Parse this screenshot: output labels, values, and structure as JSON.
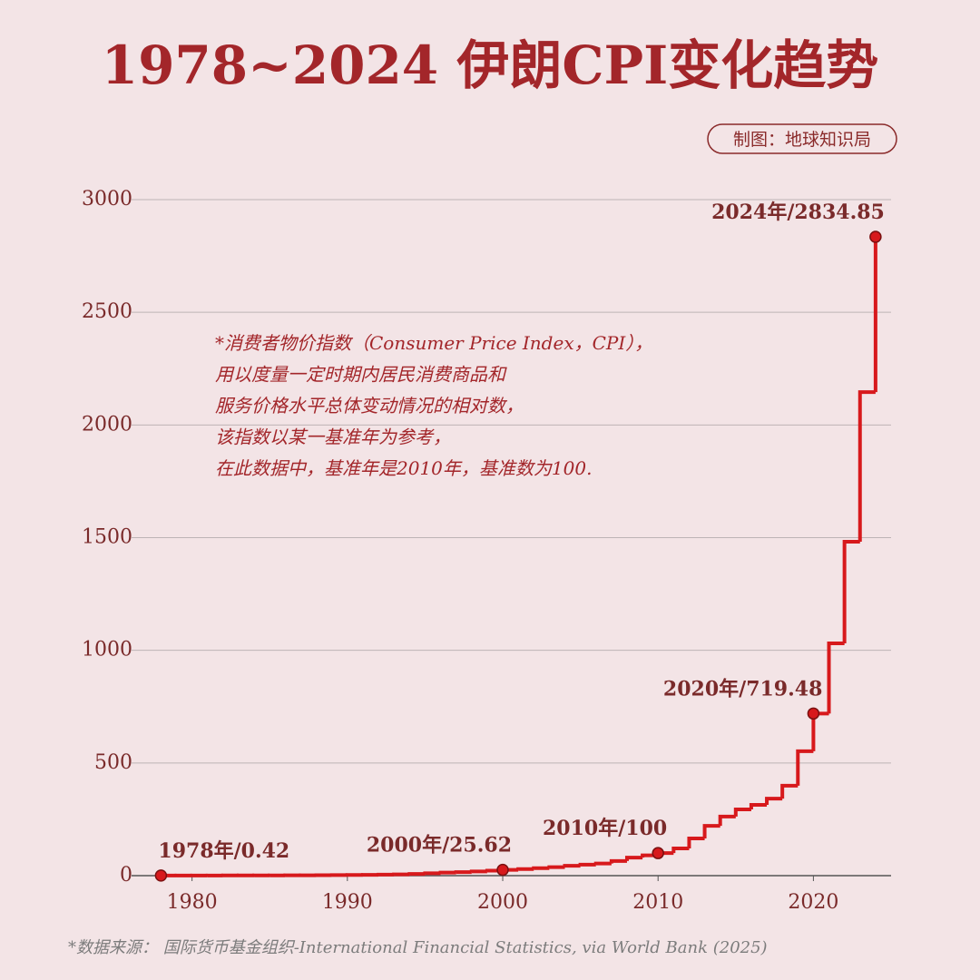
{
  "chart_data": {
    "type": "step",
    "title": "1978~2024 伊朗CPI变化趋势",
    "credit": "制图：地球知识局",
    "note": [
      "*消费者物价指数（Consumer Price Index，CPI），",
      "用以度量一定时期内居民消费商品和",
      "服务价格水平总体变动情况的相对数，",
      "该指数以某一基准年为参考，",
      "在此数据中，基准年是2010年，基准数为100."
    ],
    "source": "*数据来源： 国际货币基金组织-International Financial Statistics, via World Bank (2025)",
    "x": [
      1978,
      1979,
      1980,
      1981,
      1982,
      1983,
      1984,
      1985,
      1986,
      1987,
      1988,
      1989,
      1990,
      1991,
      1992,
      1993,
      1994,
      1995,
      1996,
      1997,
      1998,
      1999,
      2000,
      2001,
      2002,
      2003,
      2004,
      2005,
      2006,
      2007,
      2008,
      2009,
      2010,
      2011,
      2012,
      2013,
      2014,
      2015,
      2016,
      2017,
      2018,
      2019,
      2020,
      2021,
      2022,
      2023,
      2024
    ],
    "series": [
      {
        "name": "CPI",
        "color": "#d7191c",
        "values": [
          0.42,
          0.47,
          0.54,
          0.66,
          0.81,
          0.94,
          1.0,
          1.1,
          1.3,
          1.6,
          2.2,
          2.7,
          2.9,
          3.5,
          4.5,
          5.6,
          7.3,
          10.6,
          13.5,
          15.6,
          18.4,
          22,
          25.62,
          29,
          33,
          38,
          44,
          49,
          54,
          65,
          80,
          90,
          100,
          121,
          165,
          221,
          262,
          294,
          314,
          342,
          399,
          552,
          719.48,
          1031,
          1482,
          2146,
          2834.85
        ],
        "value_labels": [
          "1978年/0.42",
          null,
          null,
          null,
          null,
          null,
          null,
          null,
          null,
          null,
          null,
          null,
          null,
          null,
          null,
          null,
          null,
          null,
          null,
          null,
          null,
          null,
          "2000年/25.62",
          null,
          null,
          null,
          null,
          null,
          null,
          null,
          null,
          null,
          "2010年/100",
          null,
          null,
          null,
          null,
          null,
          null,
          null,
          null,
          null,
          "2020年/719.48",
          null,
          null,
          null,
          "2024年/2834.85"
        ]
      }
    ],
    "xlim": [
      1976.4,
      2025
    ],
    "xticks": [
      1980,
      1990,
      2000,
      2010,
      2020
    ],
    "ylim": [
      0,
      3000
    ],
    "yticks": [
      0,
      500,
      1000,
      1500,
      2000,
      2500,
      3000
    ],
    "grid": true
  }
}
